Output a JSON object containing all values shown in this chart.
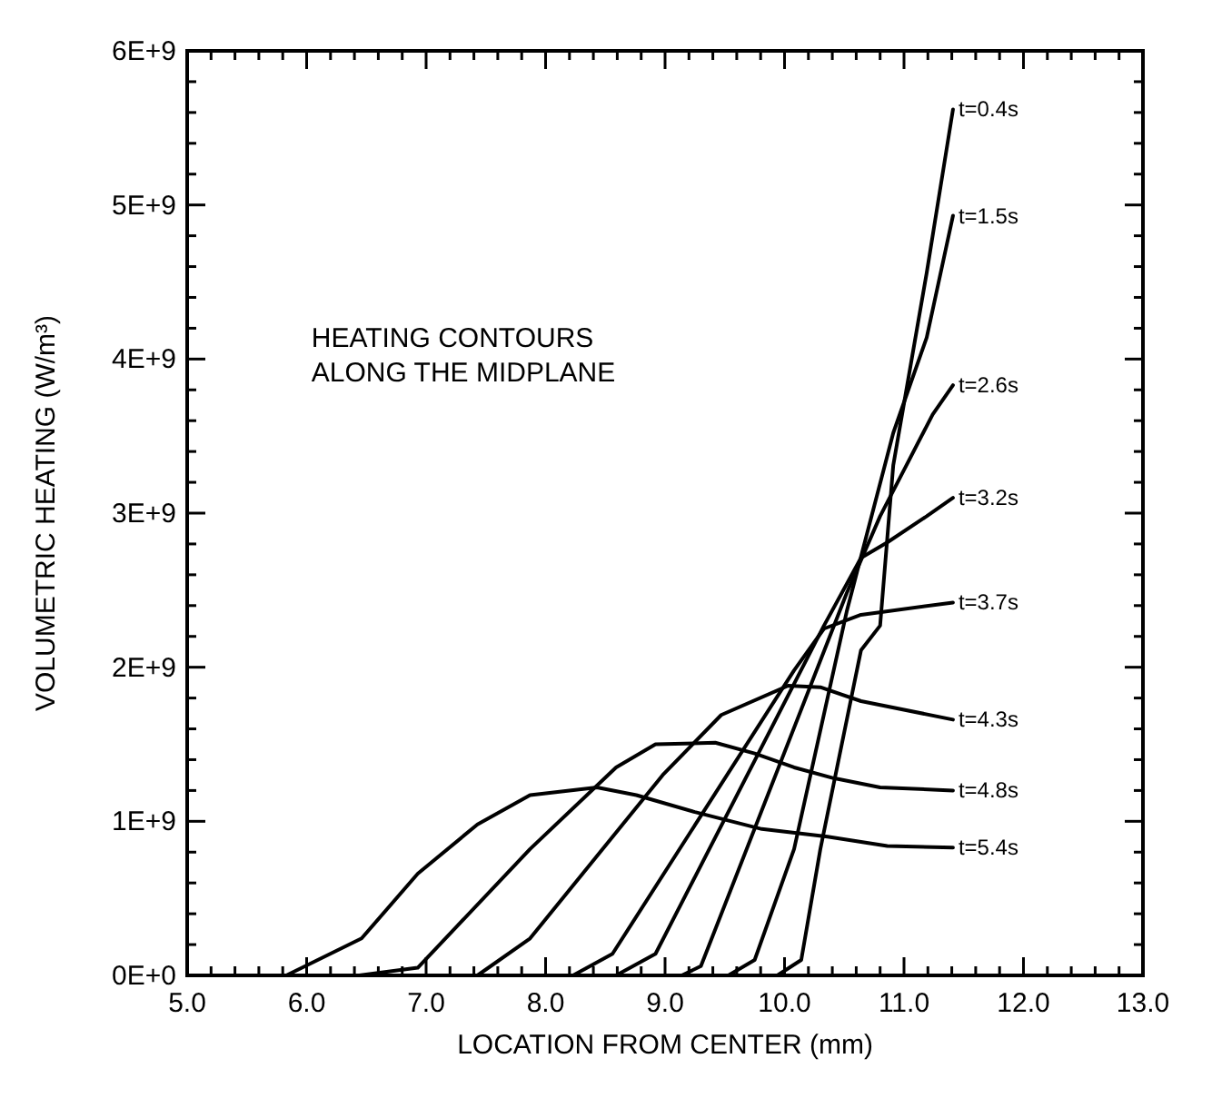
{
  "chart_data": {
    "type": "line",
    "xlabel": "LOCATION FROM CENTER (mm)",
    "ylabel": "VOLUMETRIC HEATING (W/m³)",
    "annotations": [
      "HEATING CONTOURS\nALONG THE MIDPLANE"
    ],
    "legend": false,
    "grid": false,
    "marker": "none",
    "line_style": "solid",
    "xlim": [
      5,
      13
    ],
    "ylim": [
      0,
      6000000000
    ],
    "xticks": [
      {
        "value": 5,
        "label": "5.0"
      },
      {
        "value": 5.2,
        "label": null
      },
      {
        "value": 5.4,
        "label": null
      },
      {
        "value": 5.6,
        "label": null
      },
      {
        "value": 5.8,
        "label": null
      },
      {
        "value": 6,
        "label": "6.0"
      },
      {
        "value": 6.2,
        "label": null
      },
      {
        "value": 6.4,
        "label": null
      },
      {
        "value": 6.6,
        "label": null
      },
      {
        "value": 6.8,
        "label": null
      },
      {
        "value": 7,
        "label": "7.0"
      },
      {
        "value": 7.2,
        "label": null
      },
      {
        "value": 7.4,
        "label": null
      },
      {
        "value": 7.6,
        "label": null
      },
      {
        "value": 7.8,
        "label": null
      },
      {
        "value": 8,
        "label": "8.0"
      },
      {
        "value": 8.2,
        "label": null
      },
      {
        "value": 8.4,
        "label": null
      },
      {
        "value": 8.6,
        "label": null
      },
      {
        "value": 8.8,
        "label": null
      },
      {
        "value": 9,
        "label": "9.0"
      },
      {
        "value": 9.2,
        "label": null
      },
      {
        "value": 9.4,
        "label": null
      },
      {
        "value": 9.6,
        "label": null
      },
      {
        "value": 9.8,
        "label": null
      },
      {
        "value": 10,
        "label": "10.0"
      },
      {
        "value": 10.2,
        "label": null
      },
      {
        "value": 10.4,
        "label": null
      },
      {
        "value": 10.6,
        "label": null
      },
      {
        "value": 10.8,
        "label": null
      },
      {
        "value": 11,
        "label": "11.0"
      },
      {
        "value": 11.2,
        "label": null
      },
      {
        "value": 11.4,
        "label": null
      },
      {
        "value": 11.6,
        "label": null
      },
      {
        "value": 11.8,
        "label": null
      },
      {
        "value": 12,
        "label": "12.0"
      },
      {
        "value": 12.2,
        "label": null
      },
      {
        "value": 12.4,
        "label": null
      },
      {
        "value": 12.6,
        "label": null
      },
      {
        "value": 12.8,
        "label": null
      },
      {
        "value": 13,
        "label": "13.0"
      }
    ],
    "yticks": [
      {
        "value": 0,
        "label": "0E+0"
      },
      {
        "value": 200000000,
        "label": null
      },
      {
        "value": 400000000,
        "label": null
      },
      {
        "value": 600000000,
        "label": null
      },
      {
        "value": 800000000,
        "label": null
      },
      {
        "value": 1000000000,
        "label": "1E+9"
      },
      {
        "value": 1200000000,
        "label": null
      },
      {
        "value": 1400000000,
        "label": null
      },
      {
        "value": 1600000000,
        "label": null
      },
      {
        "value": 1800000000,
        "label": null
      },
      {
        "value": 2000000000,
        "label": "2E+9"
      },
      {
        "value": 2200000000,
        "label": null
      },
      {
        "value": 2400000000,
        "label": null
      },
      {
        "value": 2600000000,
        "label": null
      },
      {
        "value": 2800000000,
        "label": null
      },
      {
        "value": 3000000000,
        "label": "3E+9"
      },
      {
        "value": 3200000000,
        "label": null
      },
      {
        "value": 3400000000,
        "label": null
      },
      {
        "value": 3600000000,
        "label": null
      },
      {
        "value": 3800000000,
        "label": null
      },
      {
        "value": 4000000000,
        "label": "4E+9"
      },
      {
        "value": 4200000000,
        "label": null
      },
      {
        "value": 4400000000,
        "label": null
      },
      {
        "value": 4600000000,
        "label": null
      },
      {
        "value": 4800000000,
        "label": null
      },
      {
        "value": 5000000000,
        "label": "5E+9"
      },
      {
        "value": 5200000000,
        "label": null
      },
      {
        "value": 5400000000,
        "label": null
      },
      {
        "value": 5600000000,
        "label": null
      },
      {
        "value": 5800000000,
        "label": null
      },
      {
        "value": 6000000000,
        "label": "6E+9"
      }
    ],
    "series": [
      {
        "name": "t=0.4s",
        "color": "#000000",
        "x": [
          9.94,
          10.14,
          10.3,
          10.64,
          10.8,
          10.91,
          11.19,
          11.41
        ],
        "values": [
          0,
          100000000,
          820000000,
          2110000000,
          2270000000,
          3310000000,
          4560000000,
          5620000000
        ]
      },
      {
        "name": "t=1.5s",
        "color": "#000000",
        "x": [
          9.53,
          9.75,
          10.08,
          10.52,
          10.91,
          11.19,
          11.41
        ],
        "values": [
          0,
          100000000,
          820000000,
          2360000000,
          3520000000,
          4140000000,
          4930000000
        ]
      },
      {
        "name": "t=2.6s",
        "color": "#000000",
        "x": [
          9.14,
          9.3,
          10.52,
          10.8,
          11.02,
          11.24,
          11.41
        ],
        "values": [
          0,
          60000000,
          2480000000,
          2980000000,
          3310000000,
          3640000000,
          3830000000
        ]
      },
      {
        "name": "t=3.2s",
        "color": "#000000",
        "x": [
          8.59,
          8.92,
          10.33,
          10.64,
          10.86,
          11.19,
          11.41
        ],
        "values": [
          0,
          140000000,
          2270000000,
          2710000000,
          2810000000,
          2980000000,
          3100000000
        ]
      },
      {
        "name": "t=3.7s",
        "color": "#000000",
        "x": [
          8.23,
          8.56,
          10.08,
          10.33,
          10.64,
          11.41
        ],
        "values": [
          0,
          140000000,
          1980000000,
          2250000000,
          2340000000,
          2420000000
        ]
      },
      {
        "name": "t=4.3s",
        "color": "#000000",
        "x": [
          7.43,
          7.87,
          8.98,
          9.47,
          10.03,
          10.3,
          10.64,
          11.41
        ],
        "values": [
          0,
          240000000,
          1300000000,
          1690000000,
          1880000000,
          1870000000,
          1780000000,
          1660000000
        ]
      },
      {
        "name": "t=4.8s",
        "color": "#000000",
        "x": [
          6.44,
          6.93,
          7.87,
          8.59,
          8.92,
          9.42,
          9.75,
          10.08,
          10.41,
          10.8,
          11.41
        ],
        "values": [
          0,
          50000000,
          820000000,
          1350000000,
          1500000000,
          1510000000,
          1440000000,
          1350000000,
          1280000000,
          1220000000,
          1200000000
        ]
      },
      {
        "name": "t=5.4s",
        "color": "#000000",
        "x": [
          5.5,
          5.83,
          6.46,
          6.93,
          7.43,
          7.87,
          8.43,
          8.76,
          9.25,
          9.81,
          10.36,
          10.86,
          11.41
        ],
        "values": [
          0,
          0,
          240000000,
          660000000,
          980000000,
          1170000000,
          1220000000,
          1170000000,
          1060000000,
          950000000,
          900000000,
          840000000,
          830000000
        ]
      }
    ]
  }
}
